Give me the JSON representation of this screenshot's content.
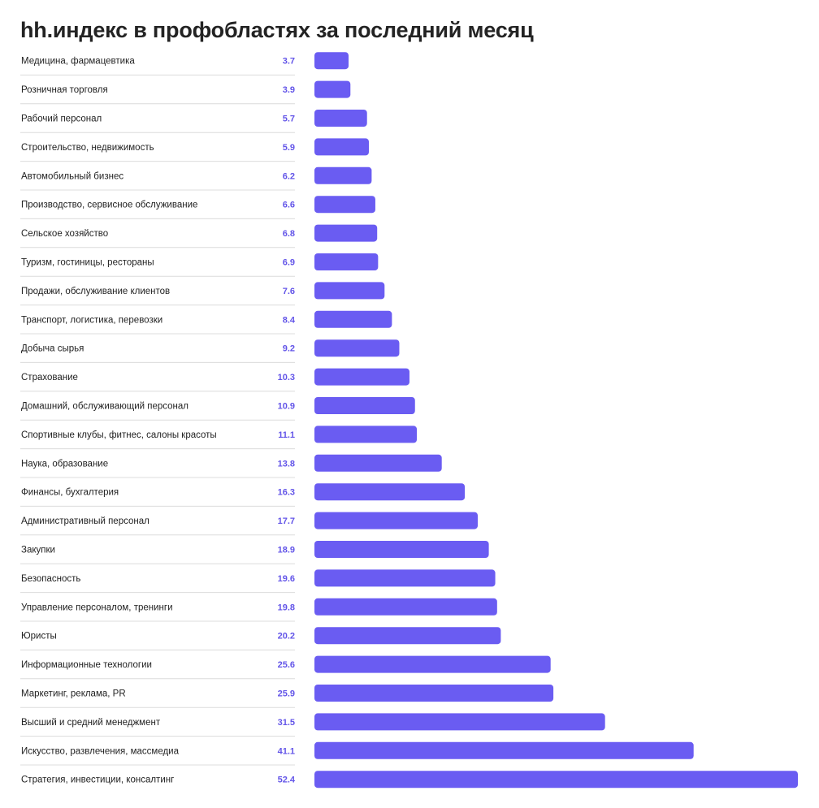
{
  "title": "hh.индекс в профобластях за последний месяц",
  "colors": {
    "bar": "#6a5cf2",
    "value_text": "#6355e8",
    "separator": "#dcdcdc"
  },
  "chart_data": {
    "type": "bar",
    "orientation": "horizontal",
    "title": "hh.индекс в профобластях за последний месяц",
    "categories": [
      "Медицина, фармацевтика",
      "Розничная торговля",
      "Рабочий персонал",
      "Строительство, недвижимость",
      "Автомобильный бизнес",
      "Производство, сервисное обслуживание",
      "Сельское хозяйство",
      "Туризм, гостиницы, рестораны",
      "Продажи, обслуживание клиентов",
      "Транспорт, логистика, перевозки",
      "Добыча сырья",
      "Страхование",
      "Домашний, обслуживающий персонал",
      "Спортивные клубы, фитнес, салоны красоты",
      "Наука, образование",
      "Финансы, бухгалтерия",
      "Административный персонал",
      "Закупки",
      "Безопасность",
      "Управление персоналом, тренинги",
      "Юристы",
      "Информационные технологии",
      "Маркетинг, реклама, PR",
      "Высший и средний менеджмент",
      "Искусство, развлечения, массмедиа",
      "Стратегия, инвестиции, консалтинг"
    ],
    "values": [
      3.7,
      3.9,
      5.7,
      5.9,
      6.2,
      6.6,
      6.8,
      6.9,
      7.6,
      8.4,
      9.2,
      10.3,
      10.9,
      11.1,
      13.8,
      16.3,
      17.7,
      18.9,
      19.6,
      19.8,
      20.2,
      25.6,
      25.9,
      31.5,
      41.1,
      52.4
    ],
    "value_labels": [
      "3.7",
      "3.9",
      "5.7",
      "5.9",
      "6.2",
      "6.6",
      "6.8",
      "6.9",
      "7.6",
      "8.4",
      "9.2",
      "10.3",
      "10.9",
      "11.1",
      "13.8",
      "16.3",
      "17.7",
      "18.9",
      "19.6",
      "19.8",
      "20.2",
      "25.6",
      "25.9",
      "31.5",
      "41.1",
      "52.4"
    ],
    "xlim": [
      0,
      52.4
    ],
    "grid": false,
    "legend": false
  }
}
